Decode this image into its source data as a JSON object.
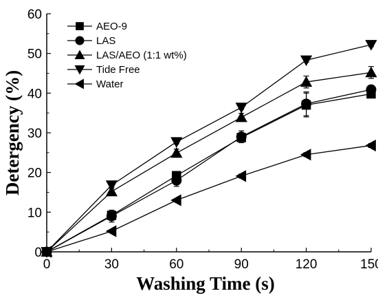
{
  "chart_data": {
    "type": "line",
    "xlabel": "Washing Time (s)",
    "ylabel": "Detergency (%)",
    "xlim": [
      0,
      150
    ],
    "ylim": [
      0,
      60
    ],
    "xticks": [
      "0",
      "30",
      "60",
      "90",
      "120",
      "150"
    ],
    "yticks": [
      "0",
      "10",
      "20",
      "30",
      "40",
      "50",
      "60"
    ],
    "x": [
      0,
      30,
      60,
      90,
      120,
      150
    ],
    "grid": false,
    "legend_position": "top-left",
    "series": [
      {
        "name": "AEO-9",
        "marker": "square",
        "values": [
          0,
          9.2,
          19.2,
          28.8,
          37.0,
          39.8
        ],
        "err": [
          0,
          1.0,
          1.0,
          1.0,
          3.0,
          1.0
        ]
      },
      {
        "name": "LAS",
        "marker": "circle",
        "values": [
          0,
          9.0,
          18.0,
          29.0,
          37.3,
          40.9
        ],
        "err": [
          0,
          1.5,
          1.5,
          1.5,
          3.0,
          1.0
        ]
      },
      {
        "name": "LAS/AEO (1:1 wt%)",
        "marker": "triangle-up",
        "values": [
          0,
          15.2,
          24.9,
          33.9,
          42.8,
          45.2
        ],
        "err": [
          0,
          0.8,
          1.0,
          1.0,
          1.5,
          1.5
        ]
      },
      {
        "name": "Tide Free",
        "marker": "triangle-down",
        "values": [
          0,
          16.8,
          27.7,
          36.4,
          48.3,
          52.2
        ],
        "err": [
          0,
          0.5,
          0.5,
          0.5,
          0.5,
          0.5
        ]
      },
      {
        "name": "Water",
        "marker": "triangle-left",
        "values": [
          0,
          5.2,
          13.0,
          19.1,
          24.5,
          26.8
        ],
        "err": [
          0,
          0.3,
          0.3,
          0.5,
          0.5,
          0.5
        ]
      }
    ]
  }
}
